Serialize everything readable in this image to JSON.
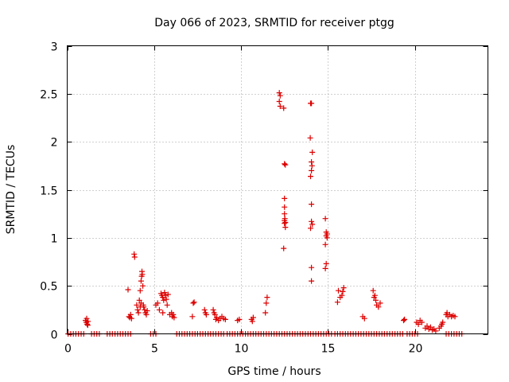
{
  "chart_data": {
    "type": "scatter",
    "title": "Day 066 of 2023, SRMTID for receiver ptgg",
    "xlabel": "GPS time / hours",
    "ylabel": "SRMTID / TECUs",
    "xlim": [
      0,
      24.2
    ],
    "ylim": [
      0,
      3
    ],
    "grid": true,
    "x_ticks": [
      0,
      5,
      10,
      15,
      20
    ],
    "x_tick_labels": [
      "0",
      "5",
      "10",
      "15",
      "20"
    ],
    "y_ticks": [
      0,
      0.5,
      1,
      1.5,
      2,
      2.5,
      3
    ],
    "y_tick_labels": [
      "0",
      "0.5",
      "1",
      "1.5",
      "2",
      "2.5",
      "3"
    ],
    "marker": "+",
    "marker_color": "#dd0000",
    "series": [
      {
        "name": "SRMTID",
        "points": [
          [
            0.05,
            0
          ],
          [
            0.2,
            0
          ],
          [
            0.35,
            0
          ],
          [
            0.5,
            0
          ],
          [
            0.65,
            0
          ],
          [
            0.8,
            0
          ],
          [
            0.95,
            0
          ],
          [
            1.4,
            0
          ],
          [
            1.55,
            0
          ],
          [
            1.7,
            0
          ],
          [
            1.85,
            0
          ],
          [
            2.3,
            0
          ],
          [
            2.45,
            0
          ],
          [
            2.6,
            0
          ],
          [
            2.75,
            0
          ],
          [
            2.9,
            0
          ],
          [
            3.05,
            0
          ],
          [
            3.2,
            0
          ],
          [
            3.35,
            0
          ],
          [
            3.5,
            0
          ],
          [
            3.65,
            0
          ],
          [
            4.8,
            0
          ],
          [
            4.95,
            0
          ],
          [
            5.1,
            0
          ],
          [
            6.3,
            0
          ],
          [
            6.45,
            0
          ],
          [
            6.6,
            0
          ],
          [
            6.75,
            0
          ],
          [
            6.9,
            0
          ],
          [
            7.05,
            0
          ],
          [
            7.2,
            0
          ],
          [
            7.35,
            0
          ],
          [
            7.5,
            0
          ],
          [
            7.65,
            0
          ],
          [
            7.8,
            0
          ],
          [
            7.95,
            0
          ],
          [
            8.1,
            0
          ],
          [
            8.25,
            0
          ],
          [
            8.4,
            0
          ],
          [
            8.55,
            0
          ],
          [
            8.7,
            0
          ],
          [
            8.85,
            0
          ],
          [
            9.0,
            0
          ],
          [
            9.2,
            0
          ],
          [
            9.35,
            0
          ],
          [
            9.5,
            0
          ],
          [
            9.65,
            0
          ],
          [
            9.8,
            0
          ],
          [
            9.95,
            0
          ],
          [
            10.1,
            0
          ],
          [
            10.25,
            0
          ],
          [
            10.4,
            0
          ],
          [
            10.55,
            0
          ],
          [
            10.7,
            0
          ],
          [
            10.85,
            0
          ],
          [
            11.0,
            0
          ],
          [
            11.15,
            0
          ],
          [
            11.3,
            0
          ],
          [
            11.45,
            0
          ],
          [
            11.6,
            0
          ],
          [
            11.75,
            0
          ],
          [
            11.9,
            0
          ],
          [
            12.05,
            0
          ],
          [
            12.2,
            0
          ],
          [
            12.35,
            0
          ],
          [
            12.5,
            0
          ],
          [
            12.65,
            0
          ],
          [
            12.8,
            0
          ],
          [
            12.95,
            0
          ],
          [
            13.1,
            0
          ],
          [
            13.25,
            0
          ],
          [
            13.4,
            0
          ],
          [
            13.55,
            0
          ],
          [
            13.7,
            0
          ],
          [
            13.85,
            0
          ],
          [
            14.0,
            0
          ],
          [
            14.15,
            0
          ],
          [
            14.3,
            0
          ],
          [
            14.45,
            0
          ],
          [
            14.6,
            0
          ],
          [
            14.75,
            0
          ],
          [
            14.9,
            0
          ],
          [
            15.05,
            0
          ],
          [
            15.2,
            0
          ],
          [
            15.4,
            0
          ],
          [
            15.55,
            0
          ],
          [
            15.7,
            0
          ],
          [
            15.85,
            0
          ],
          [
            16.0,
            0
          ],
          [
            16.15,
            0
          ],
          [
            16.3,
            0
          ],
          [
            16.45,
            0
          ],
          [
            16.6,
            0
          ],
          [
            16.75,
            0
          ],
          [
            16.9,
            0
          ],
          [
            17.05,
            0
          ],
          [
            17.2,
            0
          ],
          [
            17.35,
            0
          ],
          [
            17.5,
            0
          ],
          [
            17.65,
            0
          ],
          [
            17.8,
            0
          ],
          [
            17.95,
            0
          ],
          [
            18.1,
            0
          ],
          [
            18.25,
            0
          ],
          [
            18.4,
            0
          ],
          [
            18.55,
            0
          ],
          [
            18.7,
            0
          ],
          [
            18.85,
            0
          ],
          [
            19.0,
            0
          ],
          [
            19.15,
            0
          ],
          [
            19.3,
            0
          ],
          [
            19.55,
            0
          ],
          [
            19.7,
            0
          ],
          [
            19.85,
            0
          ],
          [
            20.0,
            0
          ],
          [
            20.15,
            0
          ],
          [
            21.8,
            0
          ],
          [
            21.95,
            0
          ],
          [
            22.1,
            0
          ],
          [
            22.25,
            0
          ],
          [
            22.4,
            0
          ],
          [
            22.55,
            0
          ],
          [
            22.7,
            0
          ],
          [
            1.05,
            0.14
          ],
          [
            1.1,
            0.12
          ],
          [
            1.15,
            0.1
          ],
          [
            1.2,
            0.13
          ],
          [
            1.12,
            0.16
          ],
          [
            1.18,
            0.09
          ],
          [
            3.5,
            0.46
          ],
          [
            3.55,
            0.18
          ],
          [
            3.6,
            0.17
          ],
          [
            3.65,
            0.2
          ],
          [
            3.7,
            0.16
          ],
          [
            3.85,
            0.83
          ],
          [
            3.88,
            0.8
          ],
          [
            4.0,
            0.3
          ],
          [
            4.05,
            0.25
          ],
          [
            4.1,
            0.22
          ],
          [
            4.15,
            0.35
          ],
          [
            4.2,
            0.45
          ],
          [
            4.25,
            0.55
          ],
          [
            4.28,
            0.6
          ],
          [
            4.3,
            0.65
          ],
          [
            4.32,
            0.62
          ],
          [
            4.35,
            0.5
          ],
          [
            4.38,
            0.3
          ],
          [
            4.4,
            0.28
          ],
          [
            4.45,
            0.25
          ],
          [
            4.5,
            0.22
          ],
          [
            4.55,
            0.2
          ],
          [
            4.6,
            0.24
          ],
          [
            4.2,
            0.28
          ],
          [
            4.25,
            0.32
          ],
          [
            5.1,
            0.3
          ],
          [
            5.2,
            0.32
          ],
          [
            5.3,
            0.25
          ],
          [
            5.4,
            0.42
          ],
          [
            5.45,
            0.4
          ],
          [
            5.5,
            0.38
          ],
          [
            5.55,
            0.35
          ],
          [
            5.6,
            0.43
          ],
          [
            5.65,
            0.4
          ],
          [
            5.7,
            0.36
          ],
          [
            5.75,
            0.3
          ],
          [
            5.8,
            0.41
          ],
          [
            5.5,
            0.22
          ],
          [
            5.9,
            0.2
          ],
          [
            6.0,
            0.22
          ],
          [
            6.05,
            0.18
          ],
          [
            6.1,
            0.2
          ],
          [
            6.15,
            0.17
          ],
          [
            7.2,
            0.18
          ],
          [
            7.25,
            0.32
          ],
          [
            7.3,
            0.33
          ],
          [
            7.9,
            0.25
          ],
          [
            7.95,
            0.22
          ],
          [
            8.0,
            0.2
          ],
          [
            8.4,
            0.25
          ],
          [
            8.45,
            0.22
          ],
          [
            8.5,
            0.2
          ],
          [
            8.55,
            0.15
          ],
          [
            8.6,
            0.17
          ],
          [
            8.7,
            0.14
          ],
          [
            8.8,
            0.16
          ],
          [
            8.9,
            0.18
          ],
          [
            9.0,
            0.16
          ],
          [
            9.1,
            0.15
          ],
          [
            9.8,
            0.14
          ],
          [
            9.9,
            0.15
          ],
          [
            10.6,
            0.15
          ],
          [
            10.65,
            0.13
          ],
          [
            10.7,
            0.17
          ],
          [
            11.4,
            0.22
          ],
          [
            11.45,
            0.32
          ],
          [
            11.5,
            0.38
          ],
          [
            12.2,
            2.51
          ],
          [
            12.25,
            2.48
          ],
          [
            12.2,
            2.42
          ],
          [
            12.25,
            2.37
          ],
          [
            12.45,
            2.35
          ],
          [
            12.5,
            1.77
          ],
          [
            12.55,
            1.76
          ],
          [
            12.5,
            1.41
          ],
          [
            12.5,
            1.32
          ],
          [
            12.5,
            1.25
          ],
          [
            12.52,
            1.2
          ],
          [
            12.5,
            1.18
          ],
          [
            12.55,
            1.16
          ],
          [
            12.5,
            1.15
          ],
          [
            12.55,
            1.11
          ],
          [
            12.45,
            0.89
          ],
          [
            14.0,
            2.4
          ],
          [
            14.05,
            2.4
          ],
          [
            13.98,
            2.04
          ],
          [
            14.1,
            1.89
          ],
          [
            14.05,
            1.79
          ],
          [
            14.08,
            1.75
          ],
          [
            14.05,
            1.7
          ],
          [
            14.0,
            1.64
          ],
          [
            14.05,
            1.35
          ],
          [
            14.05,
            1.17
          ],
          [
            14.1,
            1.14
          ],
          [
            14.0,
            1.1
          ],
          [
            14.05,
            0.69
          ],
          [
            14.05,
            0.55
          ],
          [
            14.85,
            1.2
          ],
          [
            14.9,
            1.06
          ],
          [
            14.95,
            1.04
          ],
          [
            14.9,
            1.02
          ],
          [
            14.95,
            1.0
          ],
          [
            14.85,
            0.93
          ],
          [
            14.9,
            0.73
          ],
          [
            14.85,
            0.68
          ],
          [
            15.6,
            0.45
          ],
          [
            15.55,
            0.33
          ],
          [
            15.7,
            0.38
          ],
          [
            15.8,
            0.4
          ],
          [
            15.85,
            0.44
          ],
          [
            15.9,
            0.48
          ],
          [
            17.0,
            0.18
          ],
          [
            17.1,
            0.16
          ],
          [
            17.6,
            0.45
          ],
          [
            17.65,
            0.38
          ],
          [
            17.7,
            0.4
          ],
          [
            17.75,
            0.35
          ],
          [
            17.8,
            0.3
          ],
          [
            17.9,
            0.28
          ],
          [
            18.0,
            0.32
          ],
          [
            19.35,
            0.14
          ],
          [
            19.4,
            0.15
          ],
          [
            20.1,
            0.12
          ],
          [
            20.2,
            0.1
          ],
          [
            20.3,
            0.14
          ],
          [
            20.4,
            0.12
          ],
          [
            20.6,
            0.06
          ],
          [
            20.7,
            0.08
          ],
          [
            20.8,
            0.05
          ],
          [
            20.9,
            0.07
          ],
          [
            21.0,
            0.04
          ],
          [
            21.1,
            0.05
          ],
          [
            21.2,
            0.03
          ],
          [
            21.4,
            0.06
          ],
          [
            21.5,
            0.08
          ],
          [
            21.55,
            0.1
          ],
          [
            21.6,
            0.12
          ],
          [
            21.8,
            0.2
          ],
          [
            21.85,
            0.22
          ],
          [
            21.9,
            0.18
          ],
          [
            22.0,
            0.2
          ],
          [
            22.1,
            0.18
          ],
          [
            22.2,
            0.19
          ],
          [
            22.3,
            0.18
          ]
        ]
      }
    ]
  }
}
